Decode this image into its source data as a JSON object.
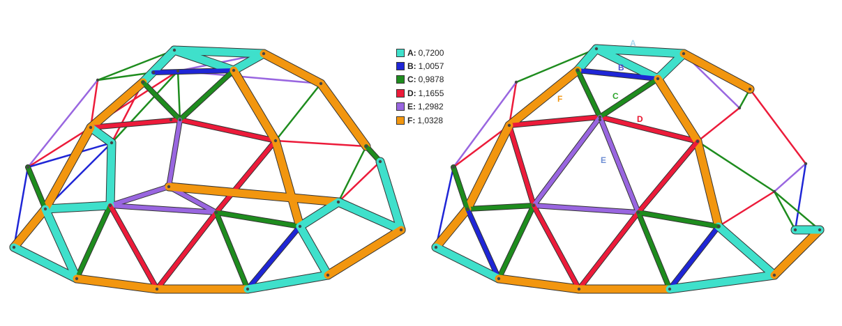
{
  "colors": {
    "A": "#3fe0cb",
    "B": "#1f26d6",
    "C": "#1e8c1e",
    "D": "#ec1b3a",
    "E": "#9966e0",
    "F": "#f2960f"
  },
  "legend": [
    {
      "key": "A:",
      "value": "0,7200",
      "color": "#3fe0cb"
    },
    {
      "key": "B:",
      "value": "1,0057",
      "color": "#1f26d6"
    },
    {
      "key": "C:",
      "value": "0,9878",
      "color": "#1e8c1e"
    },
    {
      "key": "D:",
      "value": "1,1655",
      "color": "#ec1b3a"
    },
    {
      "key": "E:",
      "value": "1,2982",
      "color": "#9966e0"
    },
    {
      "key": "F:",
      "value": "1,0328",
      "color": "#f2960f"
    }
  ],
  "labels": {
    "A": {
      "text": "A",
      "color": "#a9d8ee"
    },
    "B": {
      "text": "B",
      "color": "#4a52d0"
    },
    "C": {
      "text": "C",
      "color": "#2ea52e"
    },
    "D": {
      "text": "D",
      "color": "#e8142e"
    },
    "E": {
      "text": "E",
      "color": "#6e8ed4"
    },
    "F": {
      "text": "F",
      "color": "#f2960f"
    }
  }
}
